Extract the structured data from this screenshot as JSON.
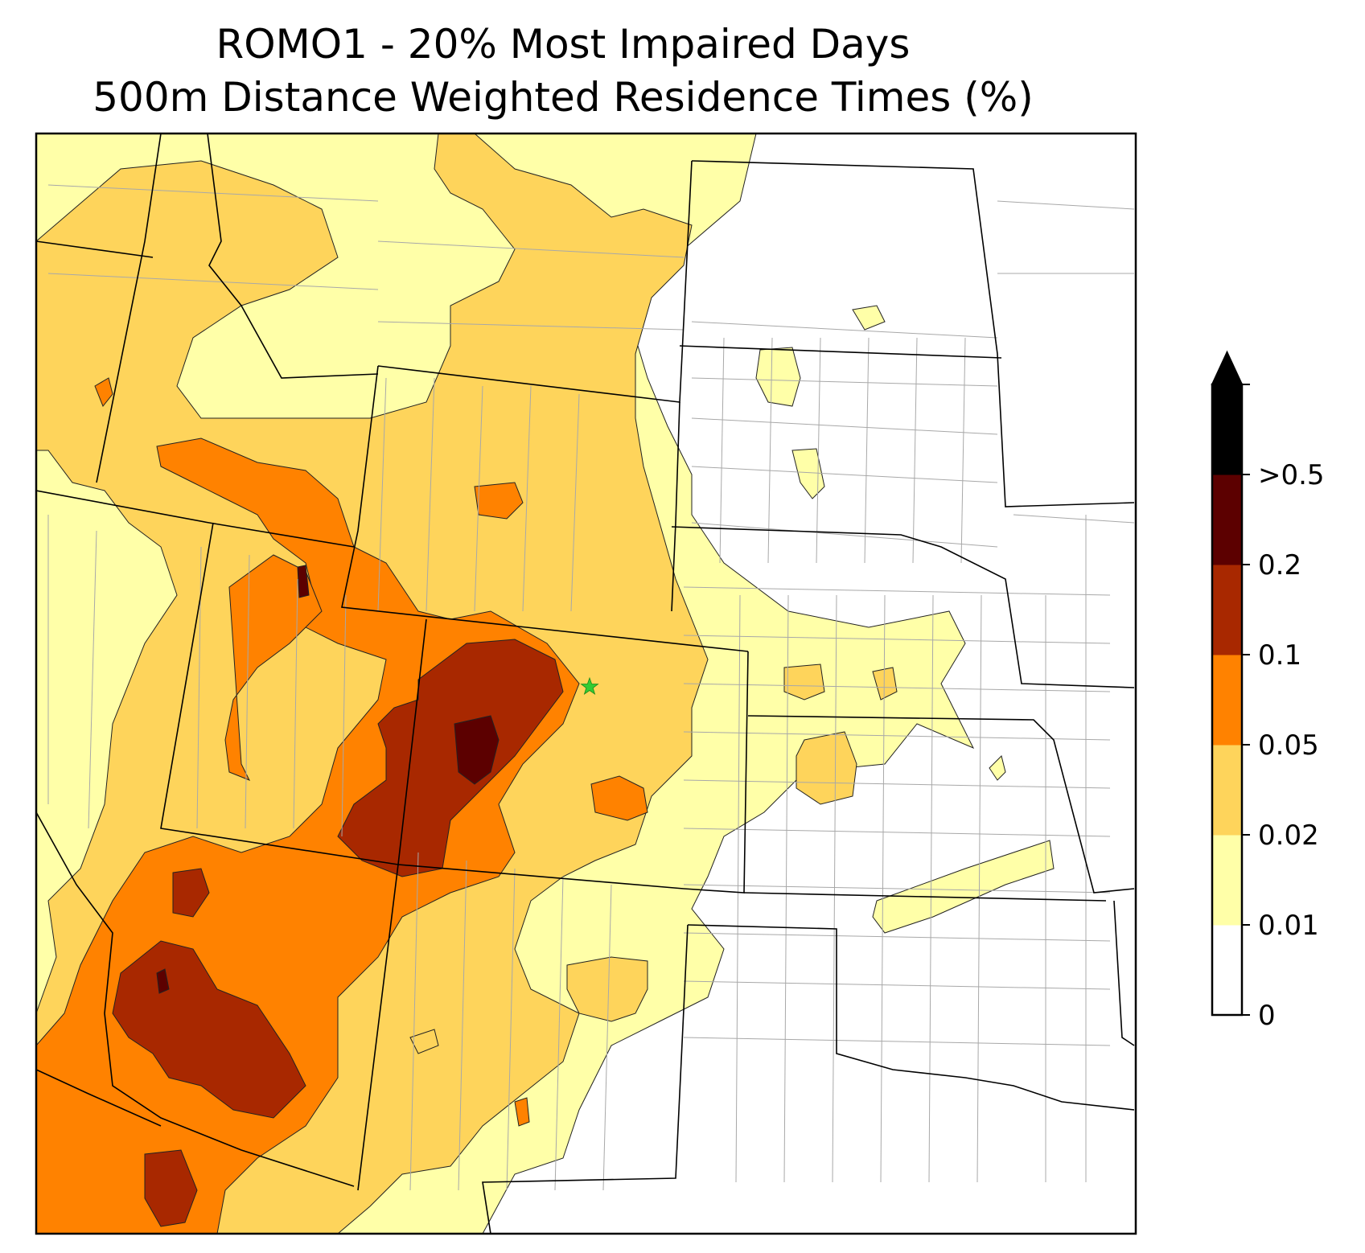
{
  "title_line1": "ROMO1 - 20% Most Impaired Days",
  "title_line2": "500m Distance Weighted Residence Times (%)",
  "site_marker": {
    "shape": "star",
    "color": "#33cc33"
  },
  "colorbar": {
    "labels": [
      "0",
      "0.01",
      "0.02",
      "0.05",
      "0.1",
      "0.2",
      ">0.5"
    ],
    "colors": [
      "#ffffff",
      "#ffffa8",
      "#fed45b",
      "#ff8200",
      "#a82800",
      "#5c0000",
      "#000000"
    ],
    "extend": "max"
  },
  "map": {
    "land_color": "#ffffff",
    "county_line_color": "#a8a8a8",
    "state_line_color": "#000000"
  }
}
